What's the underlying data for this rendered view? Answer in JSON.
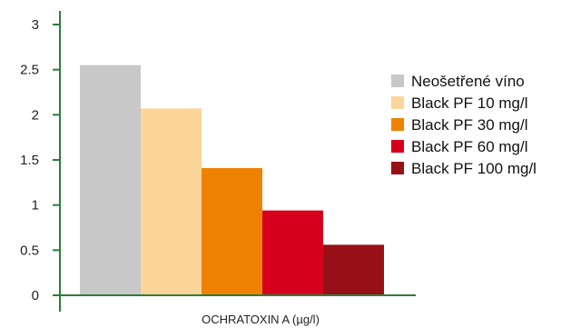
{
  "chart_data": {
    "type": "bar",
    "xlabel": "OCHRATOXIN A (µg/l)",
    "ylabel": "",
    "ylim": [
      0,
      3
    ],
    "yticks": [
      "0",
      "0.5",
      "1",
      "1.5",
      "2",
      "2.5",
      "3"
    ],
    "grid": false,
    "legend_position": "right",
    "axis_color": "#2e7d3a",
    "series": [
      {
        "name": "Neošetřené víno",
        "value": 2.55,
        "color": "#c8c8c8"
      },
      {
        "name": "Black PF 10 mg/l",
        "value": 2.07,
        "color": "#fbd59a"
      },
      {
        "name": "Black PF 30 mg/l",
        "value": 1.41,
        "color": "#ee8200"
      },
      {
        "name": "Black PF 60 mg/l",
        "value": 0.94,
        "color": "#d6001c"
      },
      {
        "name": "Black PF 100 mg/l",
        "value": 0.56,
        "color": "#971017"
      }
    ]
  }
}
